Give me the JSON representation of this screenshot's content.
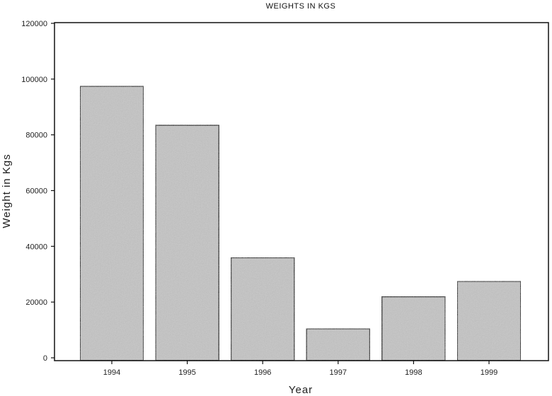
{
  "chart_data": {
    "type": "bar",
    "title": "WEIGHTS IN KGS",
    "xlabel": "Year",
    "ylabel": "Weight in Kgs",
    "categories": [
      "1994",
      "1995",
      "1996",
      "1997",
      "1998",
      "1999"
    ],
    "values": [
      97500,
      83500,
      36000,
      10500,
      22000,
      27500
    ],
    "ylim": [
      0,
      120000
    ],
    "yticks": [
      "0",
      "20000",
      "40000",
      "60000",
      "80000",
      "100000",
      "120000"
    ],
    "grid": false,
    "legend": "none",
    "colors": {
      "bar_fill": "#c4c4c4",
      "bar_stroke": "#111111",
      "axis": "#111111"
    }
  }
}
